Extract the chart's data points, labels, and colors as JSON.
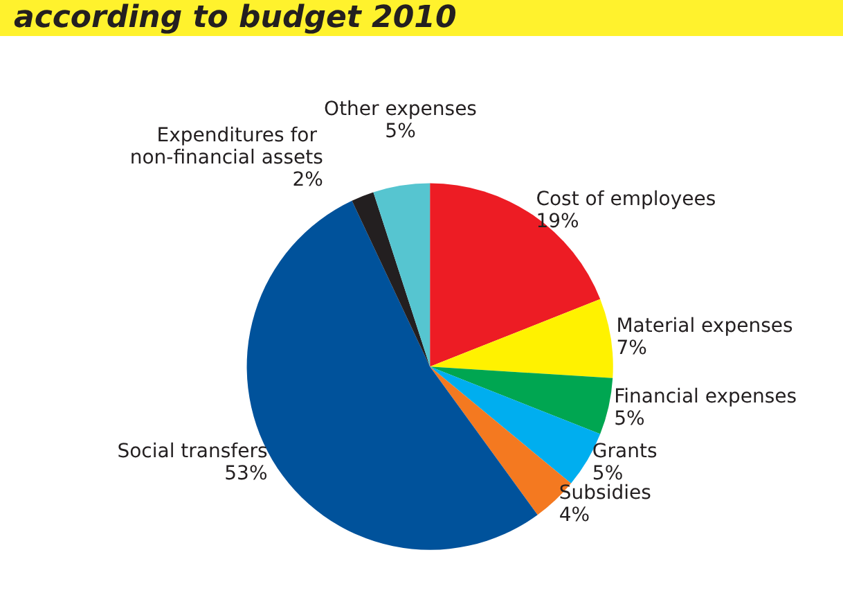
{
  "chart_data": {
    "type": "pie",
    "title": "according to budget 2010",
    "categories": [
      "Cost of employees",
      "Material expenses",
      "Financial expenses",
      "Grants",
      "Subsidies",
      "Social transfers",
      "Expenditures for non-financial assets",
      "Other expenses"
    ],
    "values": [
      19,
      7,
      5,
      5,
      4,
      53,
      2,
      5
    ],
    "colors": [
      "#ed1c24",
      "#fff200",
      "#00a651",
      "#00aeef",
      "#f47920",
      "#00529b",
      "#231f20",
      "#56c5d0"
    ],
    "value_labels": [
      "19%",
      "7%",
      "5%",
      "5%",
      "4%",
      "53%",
      "2%",
      "5%"
    ],
    "data_labels": true,
    "legend": false
  }
}
